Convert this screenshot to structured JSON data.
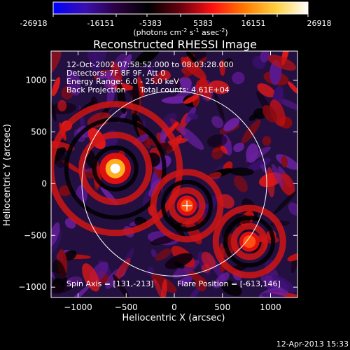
{
  "colorbar": {
    "ticks": [
      "-26918",
      "-16151",
      "-5383",
      "5383",
      "16151",
      "26918"
    ],
    "unit_text": "(photons cm",
    "unit_sup1": "-2",
    "unit_s": " s",
    "unit_sup2": "-1",
    "unit_asec": " asec",
    "unit_sup3": "-2",
    "unit_close": ")",
    "gradient_stops": [
      "#0000ff",
      "#3b0fb0",
      "#2a0040",
      "#000000",
      "#6a0010",
      "#ff1010",
      "#ff7a00",
      "#ffd040",
      "#ffffff"
    ]
  },
  "info": {
    "time_range": "12-Oct-2002 07:58:52.000 to 08:03:28.000",
    "detectors": "Detectors: 7F 8F 9F, Att 0",
    "energy": "Energy Range: 6.0 - 25.0 keV",
    "method": "Back Projection",
    "total_counts": "Total counts: 4.61E+04",
    "spin_axis": "Spin Axis = [131,-213]",
    "flare_position": "Flare Position = [-613,146]"
  },
  "footer": {
    "timestamp": "12-Apr-2013 15:33"
  },
  "chart_data": {
    "type": "heatmap",
    "title": "Reconstructed RHESSI Image",
    "xlabel": "Heliocentric X (arcsec)",
    "ylabel": "Heliocentric Y (arcsec)",
    "xlim": [
      -1280,
      1280
    ],
    "ylim": [
      -1100,
      1280
    ],
    "xticks": [
      -1000,
      -500,
      0,
      500,
      1000
    ],
    "yticks": [
      -1000,
      -500,
      0,
      500,
      1000
    ],
    "color_range": [
      -26918,
      26918
    ],
    "sources": [
      {
        "x": -613,
        "y": 146,
        "peak": 26918
      },
      {
        "x": 131,
        "y": -213,
        "peak": 9000
      },
      {
        "x": 780,
        "y": -560,
        "peak": 7000
      }
    ],
    "spin_axis": [
      131,
      -213
    ],
    "flare_position": [
      -613,
      146
    ],
    "solar_limb_radius": 960
  }
}
